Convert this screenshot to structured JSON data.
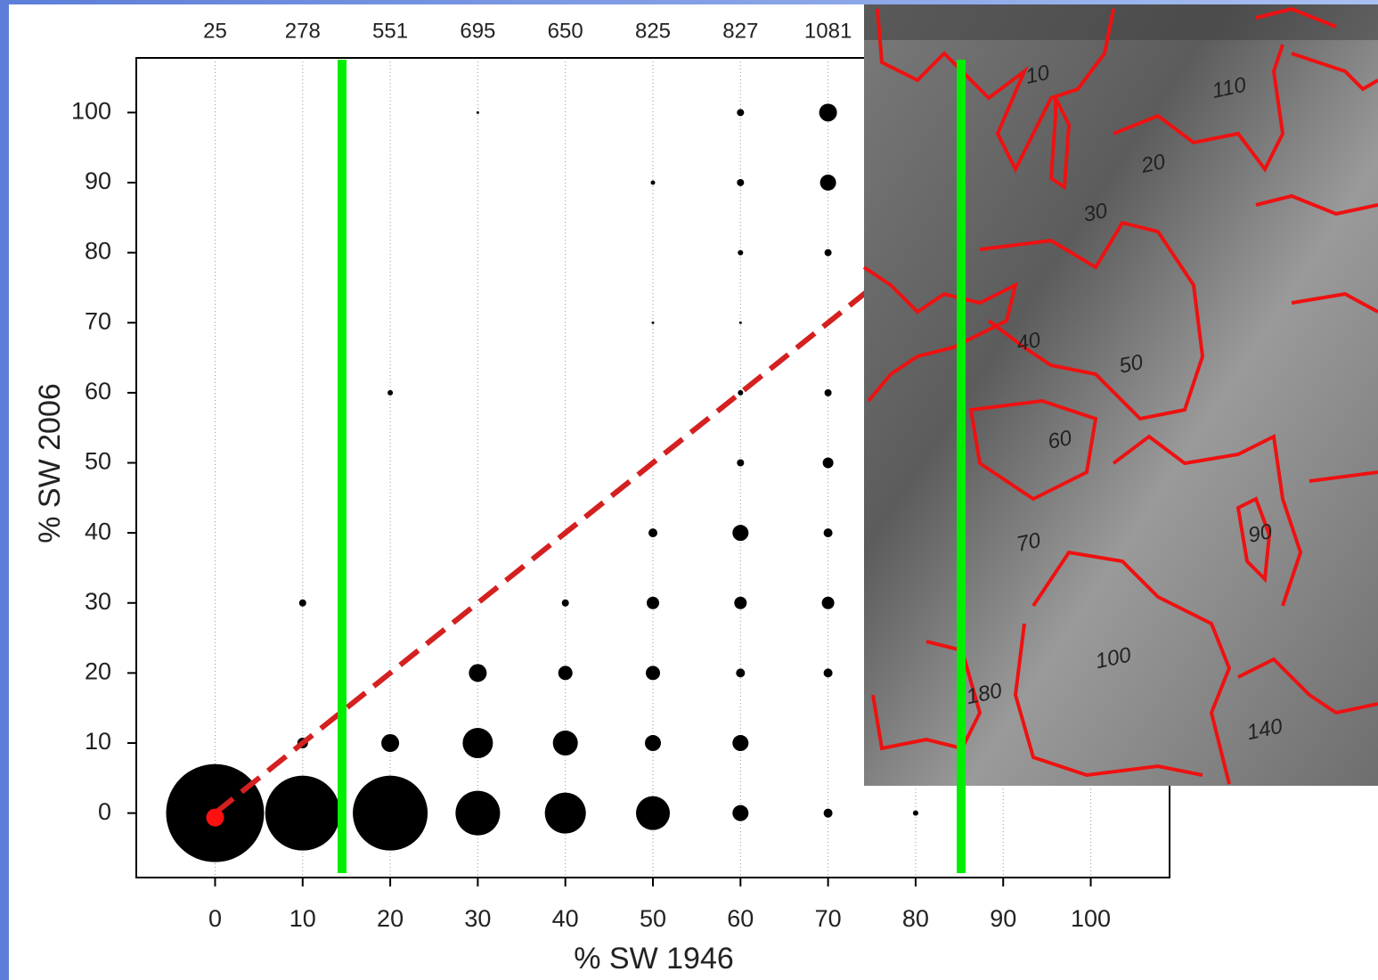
{
  "chart_data": {
    "type": "bubble",
    "x_label": "% SW 1946",
    "y_label": "% SW 2006",
    "top_labels": [
      "25",
      "278",
      "551",
      "695",
      "650",
      "825",
      "827",
      "1081"
    ],
    "top_label_x": [
      0,
      10,
      20,
      30,
      40,
      50,
      60,
      70
    ],
    "xlim": [
      -9,
      109
    ],
    "ylim": [
      -9.2,
      107.8
    ],
    "xticks": [
      0,
      10,
      20,
      30,
      40,
      50,
      60,
      70,
      80,
      90,
      100
    ],
    "yticks": [
      0,
      10,
      20,
      30,
      40,
      50,
      60,
      70,
      80,
      90,
      100
    ],
    "grid": "x",
    "series": [
      {
        "color": "#000000",
        "x": [
          0,
          10,
          10,
          10,
          20,
          20,
          20,
          30,
          30,
          30,
          30,
          40,
          40,
          40,
          40,
          40,
          50,
          50,
          50,
          50,
          50,
          50,
          50,
          50,
          60,
          60,
          60,
          60,
          60,
          60,
          60,
          60,
          60,
          60,
          60,
          70,
          70,
          70,
          70,
          70,
          70,
          70,
          70,
          70,
          80
        ],
        "y": [
          0,
          0,
          10,
          30,
          0,
          10,
          60,
          0,
          10,
          20,
          100,
          0,
          10,
          20,
          30,
          40,
          0,
          10,
          20,
          30,
          40,
          50,
          70,
          90,
          0,
          10,
          20,
          30,
          40,
          50,
          60,
          70,
          80,
          90,
          100,
          0,
          20,
          30,
          40,
          50,
          60,
          80,
          90,
          100,
          0
        ],
        "sizes": [
          55,
          42,
          6,
          4,
          42,
          10,
          3,
          25,
          17,
          10,
          1.5,
          23,
          14,
          8,
          4,
          3,
          19,
          9,
          8,
          7,
          5,
          2,
          1.5,
          2.5,
          9,
          9,
          5,
          7,
          9,
          4,
          3,
          1.5,
          3,
          4,
          4,
          5,
          5,
          7,
          5,
          6,
          4,
          4,
          9,
          10,
          3
        ]
      }
    ],
    "diagonal_color": "#d42020",
    "origin_marker_color": "#ff1010",
    "reference_lines": [
      14.5,
      85.2
    ],
    "reference_line_color": "#00ee00"
  },
  "overlay_labels": [
    "110",
    "20",
    "30",
    "40",
    "50",
    "60",
    "70",
    "100",
    "140",
    "180",
    "10",
    "90"
  ]
}
